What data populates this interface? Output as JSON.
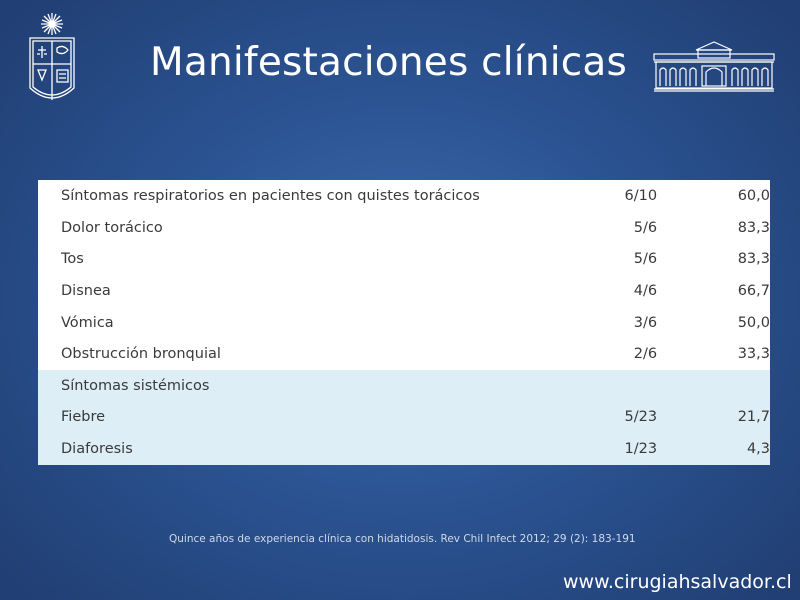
{
  "slide": {
    "title": "Manifestaciones clínicas",
    "footnote": "Quince años de experiencia clínica con hidatidosis. Rev Chil Infect 2012; 29 (2): 183-191",
    "website": "www.cirugiahsalvador.cl"
  },
  "table": {
    "respiratory": [
      {
        "label": "Síntomas respiratorios en pacientes con quistes torácicos",
        "fraction": "6/10",
        "percent": "60,0"
      },
      {
        "label": "Dolor torácico",
        "fraction": "5/6",
        "percent": "83,3"
      },
      {
        "label": "Tos",
        "fraction": "5/6",
        "percent": "83,3"
      },
      {
        "label": "Disnea",
        "fraction": "4/6",
        "percent": "66,7"
      },
      {
        "label": "Vómica",
        "fraction": "3/6",
        "percent": "50,0"
      },
      {
        "label": "Obstrucción bronquial",
        "fraction": "2/6",
        "percent": "33,3"
      }
    ],
    "systemic_header": "Síntomas sistémicos",
    "systemic": [
      {
        "label": "Fiebre",
        "fraction": "5/23",
        "percent": "21,7"
      },
      {
        "label": "Diaforesis",
        "fraction": "1/23",
        "percent": "4,3"
      }
    ]
  },
  "icons": {
    "left_logo": "university-crest-icon",
    "right_logo": "building-facade-icon"
  },
  "colors": {
    "background": "#2c5594",
    "table_white": "#ffffff",
    "table_tint": "#ddeef6",
    "text": "#3a3a3a"
  }
}
